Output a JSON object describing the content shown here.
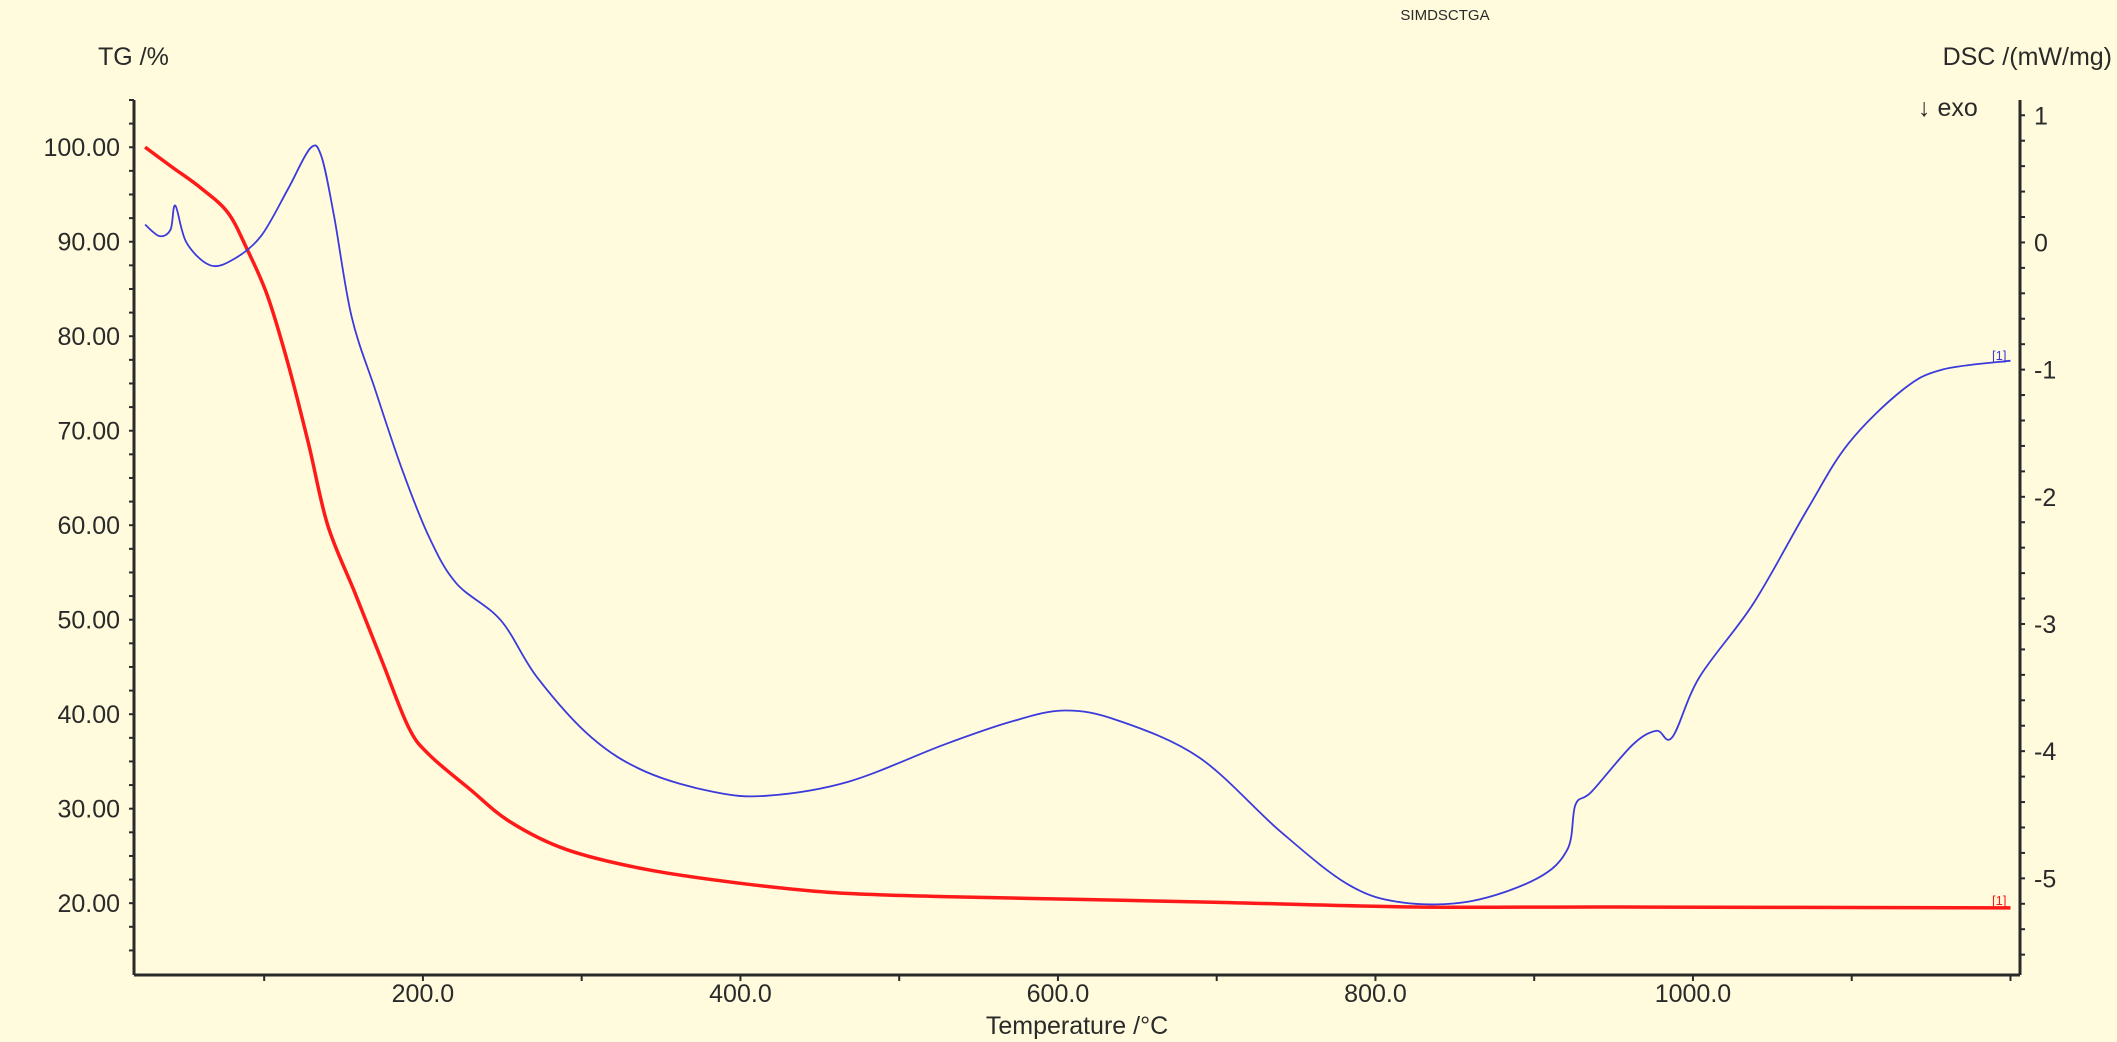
{
  "chart_data": {
    "type": "line",
    "title": "SIMDSCTGA",
    "xlabel": "Temperature /°C",
    "ylabel_left": "TG /%",
    "ylabel_right": "DSC /(mW/mg)",
    "annotation": "↓ exo",
    "curve_tags": {
      "tg": "[1]",
      "dsc": "[1]"
    },
    "xlim": [
      18,
      1206
    ],
    "ylim_left": [
      12.4,
      105
    ],
    "ylim_right": [
      -5.76,
      1.12
    ],
    "x_ticks": [
      "200.0",
      "400.0",
      "600.0",
      "800.0",
      "1000.0"
    ],
    "x_tick_values": [
      200,
      400,
      600,
      800,
      1000
    ],
    "y_left_ticks": [
      "100.00",
      "90.00",
      "80.00",
      "70.00",
      "60.00",
      "50.00",
      "40.00",
      "30.00",
      "20.00"
    ],
    "y_left_tick_values": [
      100,
      90,
      80,
      70,
      60,
      50,
      40,
      30,
      20
    ],
    "y_right_ticks": [
      "1",
      "0",
      "-1",
      "-2",
      "-3",
      "-4",
      "-5"
    ],
    "y_right_tick_values": [
      1,
      0,
      -1,
      -2,
      -3,
      -4,
      -5
    ],
    "grid": false,
    "colors": {
      "tg": "#ff1a1a",
      "dsc": "#3b3bdc",
      "axis": "#2a2a2a",
      "background": "#fffbdc"
    },
    "series": [
      {
        "name": "TG",
        "axis": "left",
        "x": [
          25,
          42,
          60,
          77,
          89,
          102,
          115,
          128,
          140,
          157,
          174,
          191,
          204,
          230,
          255,
          290,
          340,
          400,
          460,
          528,
          613,
          698,
          826,
          953,
          1200
        ],
        "values": [
          100,
          97.9,
          95.7,
          93.1,
          89.3,
          84.3,
          77.1,
          68.6,
          60,
          52.9,
          45.7,
          38.6,
          35.7,
          32,
          28.6,
          25.7,
          23.6,
          22.1,
          21.1,
          20.7,
          20.4,
          20.1,
          19.6,
          19.6,
          19.5
        ]
      },
      {
        "name": "DSC",
        "axis": "right",
        "x": [
          25,
          34,
          41,
          44,
          51,
          66,
          81,
          98,
          115,
          129,
          136,
          144,
          155,
          170,
          187,
          204,
          221,
          249,
          272,
          306,
          340,
          383,
          417,
          468,
          528,
          570,
          604,
          638,
          689,
          740,
          783,
          817,
          860,
          902,
          921,
          926,
          936,
          962,
          977,
          987,
          1004,
          1038,
          1072,
          1098,
          1132,
          1157,
          1200
        ],
        "values": [
          0.14,
          0.05,
          0.1,
          0.29,
          0,
          -0.18,
          -0.13,
          0.05,
          0.42,
          0.74,
          0.68,
          0.21,
          -0.58,
          -1.16,
          -1.79,
          -2.32,
          -2.68,
          -2.97,
          -3.42,
          -3.89,
          -4.16,
          -4.32,
          -4.35,
          -4.24,
          -3.95,
          -3.77,
          -3.68,
          -3.76,
          -4.05,
          -4.63,
          -5.05,
          -5.19,
          -5.18,
          -5.0,
          -4.77,
          -4.42,
          -4.32,
          -3.95,
          -3.84,
          -3.89,
          -3.42,
          -2.84,
          -2.1,
          -1.58,
          -1.16,
          -1.0,
          -0.93
        ]
      }
    ]
  }
}
